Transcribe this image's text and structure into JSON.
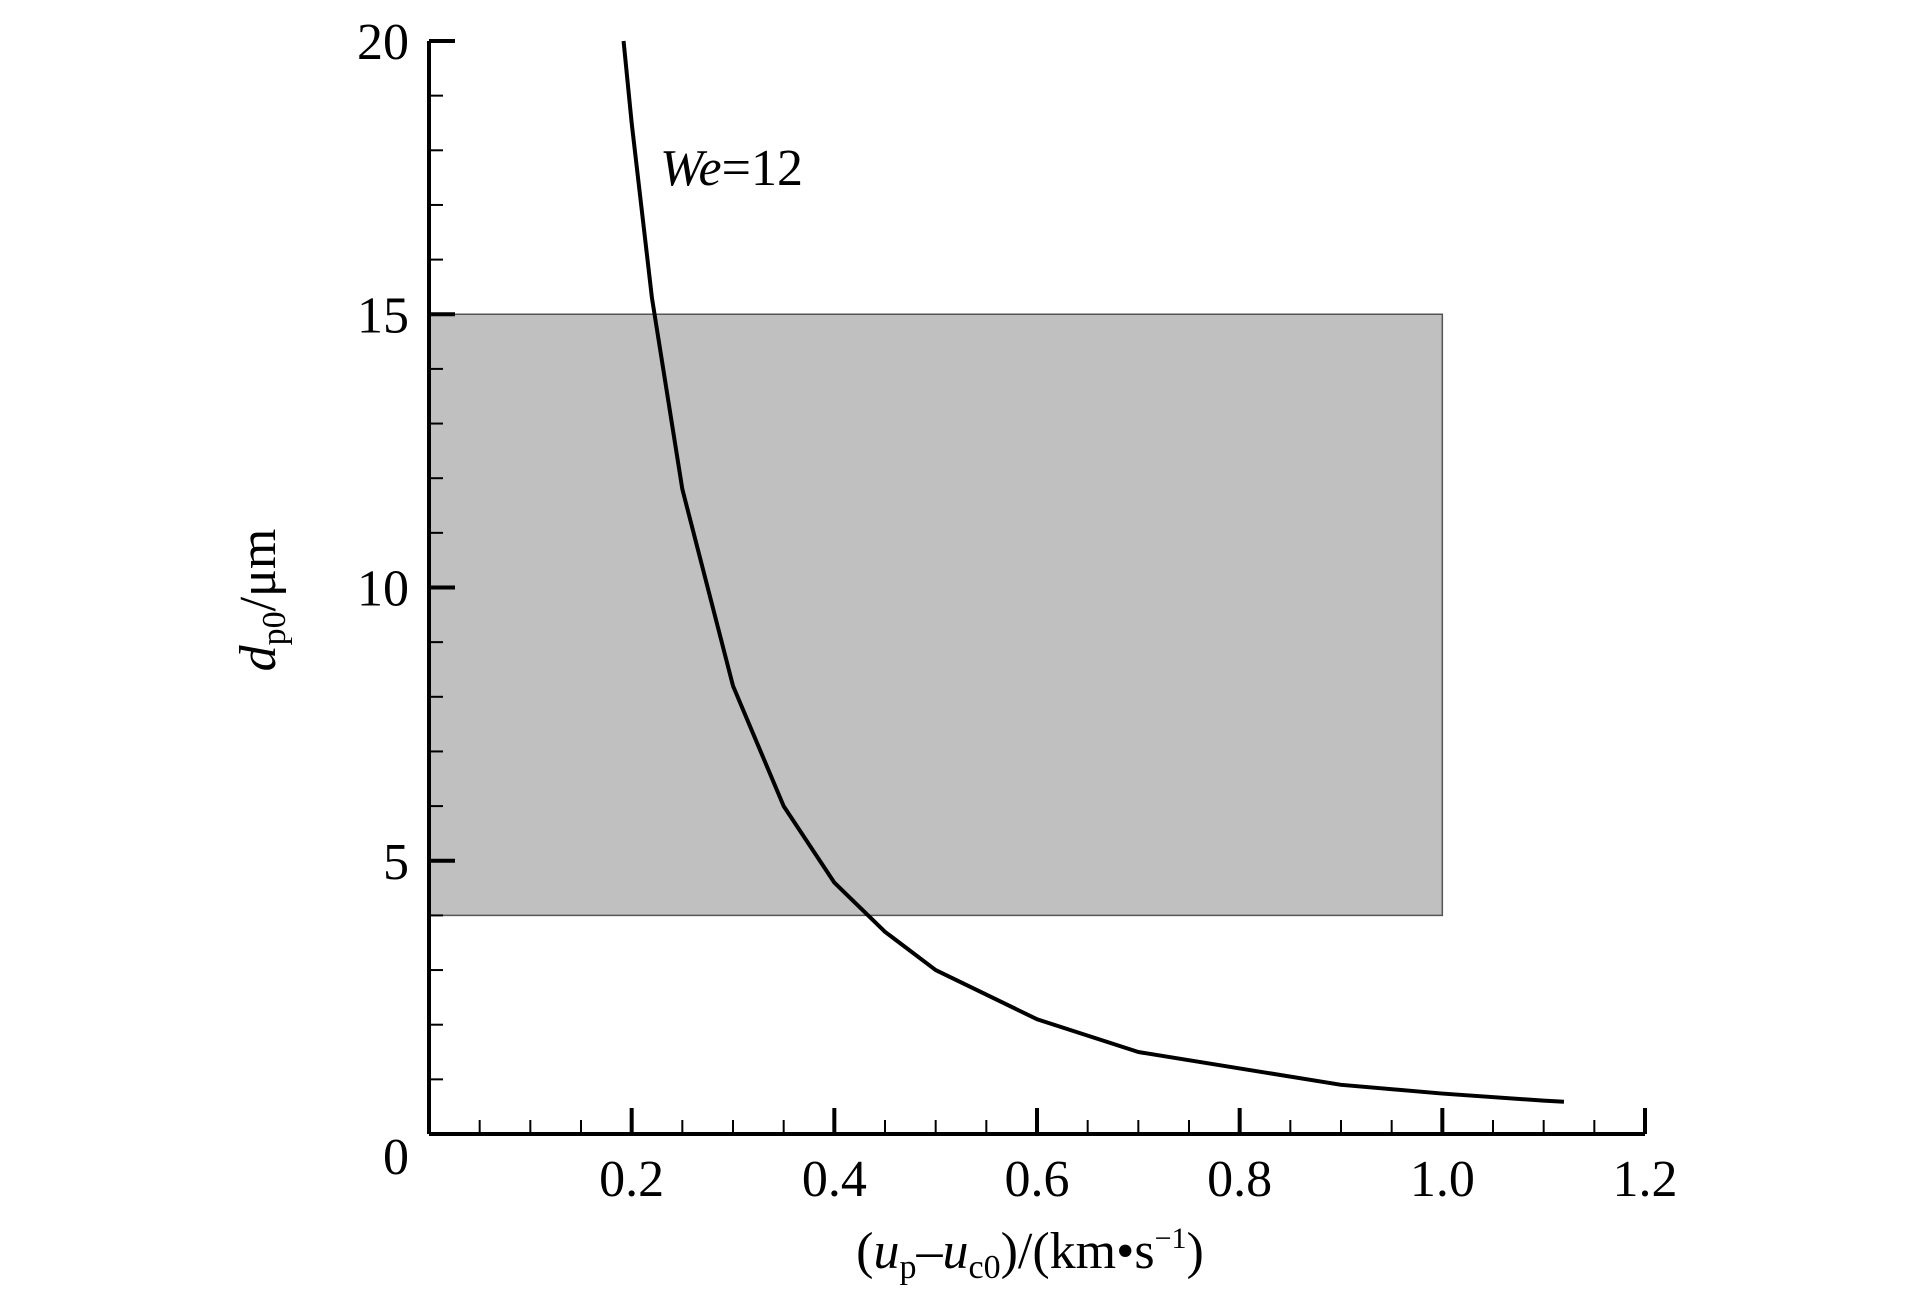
{
  "chart_data": {
    "type": "line",
    "xlabel": [
      "(",
      "u",
      "p",
      "–",
      "u",
      "c0",
      ")/(km•s",
      "−1",
      ")"
    ],
    "ylabel": [
      "d",
      "p0",
      "/μm"
    ],
    "annotation": [
      "We",
      "=12"
    ],
    "x": [
      0.192,
      0.2,
      0.22,
      0.25,
      0.3,
      0.35,
      0.4,
      0.45,
      0.5,
      0.6,
      0.7,
      0.8,
      0.9,
      1.0,
      1.1,
      1.12
    ],
    "series": [
      {
        "color": "#000000",
        "values": [
          20,
          18.5,
          15.3,
          11.8,
          8.2,
          6.0,
          4.6,
          3.7,
          3.0,
          2.1,
          1.5,
          1.2,
          0.9,
          0.74,
          0.61,
          0.59
        ]
      }
    ],
    "region": {
      "x": [
        0,
        1.0
      ],
      "y": [
        4,
        15
      ],
      "color": "#c0c0c0"
    },
    "xlim": [
      0,
      1.2
    ],
    "ylim": [
      0,
      20
    ],
    "xticks": [
      0.2,
      0.4,
      0.6,
      0.8,
      {
        "value": 1.0,
        "label": "1.0"
      },
      1.2
    ],
    "yticks": [
      0,
      5,
      10,
      15,
      20
    ],
    "xminorticks": [
      0.05,
      0.1,
      0.15,
      0.25,
      0.3,
      0.35,
      0.45,
      0.5,
      0.55,
      0.65,
      0.7,
      0.75,
      0.85,
      0.9,
      0.95,
      1.05,
      1.1,
      1.15
    ],
    "yminorticks": [
      1,
      2,
      3,
      4,
      6,
      7,
      8,
      9,
      11,
      12,
      13,
      14,
      16,
      17,
      18,
      19
    ]
  }
}
